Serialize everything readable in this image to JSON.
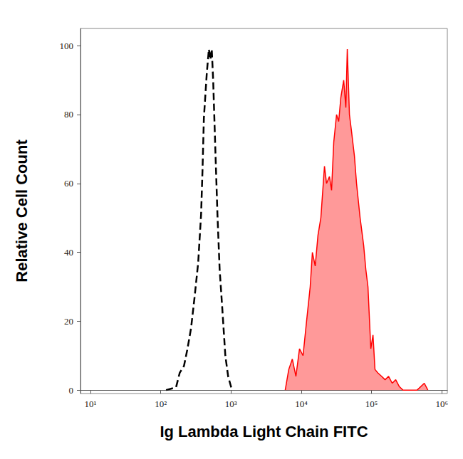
{
  "chart_data": {
    "type": "line",
    "xlabel": "Ig Lambda Light Chain FITC",
    "ylabel": "Relative Cell Count",
    "log": "x",
    "grid": false,
    "xlim": [
      7.2,
      1200000
    ],
    "xticks": [
      {
        "value": 10,
        "label": "10¹"
      },
      {
        "value": 100,
        "label": "10²"
      },
      {
        "value": 1000,
        "label": "10³"
      },
      {
        "value": 10000,
        "label": "10⁴"
      },
      {
        "value": 100000,
        "label": "10⁵"
      },
      {
        "value": 1000000,
        "label": "10⁶"
      }
    ],
    "ylim": [
      -1,
      105
    ],
    "yticks": [
      0,
      20,
      40,
      60,
      80,
      100
    ],
    "series": [
      {
        "type": "line",
        "color": "#000000",
        "line_style": "dashed",
        "x": [
          119,
          140,
          165,
          186,
          214,
          240,
          270,
          303,
          341,
          375,
          393,
          411,
          452,
          484,
          508,
          532,
          557,
          598,
          641,
          689,
          755,
          830,
          910,
          1000,
          1072
        ],
        "values": [
          0,
          0.4,
          0.8,
          5,
          7,
          12,
          18,
          27,
          37,
          51,
          64,
          79,
          92,
          99,
          96,
          99,
          90,
          70,
          51,
          35,
          23,
          10,
          4,
          1,
          0
        ]
      },
      {
        "type": "area",
        "color": "#ff0000",
        "line_style": "solid",
        "x": [
          5910,
          6640,
          7460,
          8390,
          9440,
          10600,
          11900,
          13400,
          14400,
          15800,
          17300,
          19000,
          21400,
          22900,
          25200,
          27000,
          29000,
          31800,
          34100,
          36600,
          40200,
          43100,
          45200,
          48500,
          52000,
          57100,
          61200,
          68800,
          77300,
          83000,
          89000,
          97700,
          105000,
          112000,
          123000,
          139000,
          156000,
          175000,
          197000,
          221000,
          249000,
          280000,
          353000,
          446000,
          564000,
          634000
        ],
        "values": [
          0,
          6,
          9,
          4,
          12,
          10,
          20,
          30,
          40,
          36,
          45,
          50,
          65,
          60,
          62,
          58,
          72,
          80,
          78,
          85,
          90,
          82,
          99,
          80,
          75,
          68,
          60,
          50,
          42,
          35,
          30,
          12,
          16,
          6,
          5,
          4,
          3,
          4,
          2,
          3,
          1,
          0,
          0,
          0,
          2,
          0
        ]
      }
    ]
  }
}
